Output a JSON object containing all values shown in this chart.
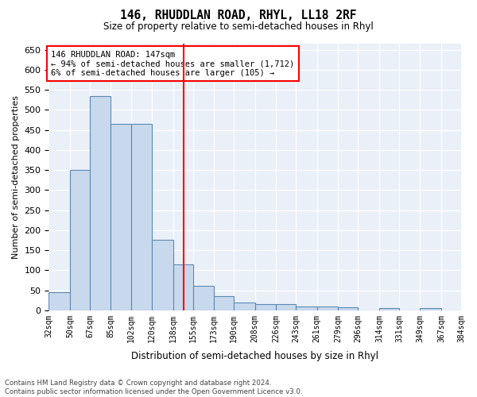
{
  "title": "146, RHUDDLAN ROAD, RHYL, LL18 2RF",
  "subtitle": "Size of property relative to semi-detached houses in Rhyl",
  "xlabel": "Distribution of semi-detached houses by size in Rhyl",
  "ylabel": "Number of semi-detached properties",
  "bar_color": "#c9d9ed",
  "bar_edge_color": "#5b8ab5",
  "bg_color": "#eaf0f8",
  "grid_color": "white",
  "annotation_text": "146 RHUDDLAN ROAD: 147sqm\n← 94% of semi-detached houses are smaller (1,712)\n6% of semi-detached houses are larger (105) →",
  "vline_x": 147,
  "vline_color": "red",
  "footer": "Contains HM Land Registry data © Crown copyright and database right 2024.\nContains public sector information licensed under the Open Government Licence v3.0.",
  "bins": [
    32,
    50,
    67,
    85,
    102,
    120,
    138,
    155,
    173,
    190,
    208,
    226,
    243,
    261,
    279,
    296,
    314,
    331,
    349,
    367,
    384
  ],
  "bin_labels": [
    "32sqm",
    "50sqm",
    "67sqm",
    "85sqm",
    "102sqm",
    "120sqm",
    "138sqm",
    "155sqm",
    "173sqm",
    "190sqm",
    "208sqm",
    "226sqm",
    "243sqm",
    "261sqm",
    "279sqm",
    "296sqm",
    "314sqm",
    "331sqm",
    "349sqm",
    "367sqm",
    "384sqm"
  ],
  "counts": [
    45,
    350,
    535,
    465,
    465,
    175,
    115,
    60,
    35,
    20,
    15,
    15,
    10,
    10,
    8,
    0,
    6,
    0,
    6,
    0
  ],
  "ylim": [
    0,
    665
  ],
  "yticks": [
    0,
    50,
    100,
    150,
    200,
    250,
    300,
    350,
    400,
    450,
    500,
    550,
    600,
    650
  ]
}
